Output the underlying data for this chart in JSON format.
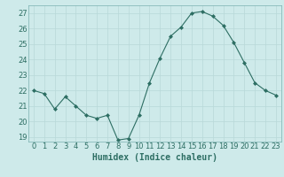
{
  "x": [
    0,
    1,
    2,
    3,
    4,
    5,
    6,
    7,
    8,
    9,
    10,
    11,
    12,
    13,
    14,
    15,
    16,
    17,
    18,
    19,
    20,
    21,
    22,
    23
  ],
  "y": [
    22.0,
    21.8,
    20.8,
    21.6,
    21.0,
    20.4,
    20.2,
    20.4,
    18.8,
    18.9,
    20.4,
    22.5,
    24.1,
    25.5,
    26.1,
    27.0,
    27.1,
    26.8,
    26.2,
    25.1,
    23.8,
    22.5,
    22.0,
    21.7
  ],
  "xlabel": "Humidex (Indice chaleur)",
  "yticks": [
    19,
    20,
    21,
    22,
    23,
    24,
    25,
    26,
    27
  ],
  "xticks": [
    0,
    1,
    2,
    3,
    4,
    5,
    6,
    7,
    8,
    9,
    10,
    11,
    12,
    13,
    14,
    15,
    16,
    17,
    18,
    19,
    20,
    21,
    22,
    23
  ],
  "line_color": "#2d6e63",
  "marker": "D",
  "marker_size": 2.0,
  "bg_color": "#ceeaea",
  "grid_color": "#b8d8d8",
  "tick_color": "#2d6e63",
  "label_color": "#2d6e63",
  "spine_color": "#7ab0b0",
  "ylim_min": 18.7,
  "ylim_max": 27.5,
  "xlim_min": -0.5,
  "xlim_max": 23.5,
  "tick_fontsize": 6.0,
  "xlabel_fontsize": 7.0
}
